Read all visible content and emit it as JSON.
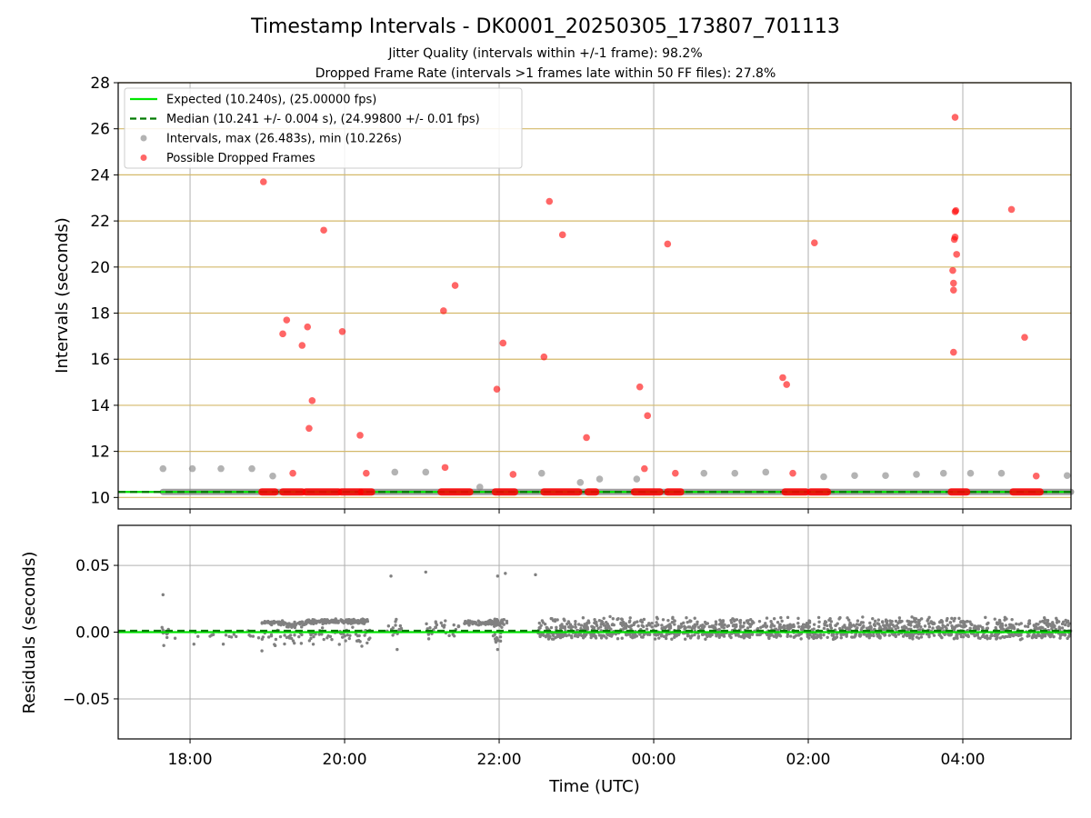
{
  "figure": {
    "title": "Timestamp Intervals - DK0001_20250305_173807_701113",
    "subtitle_1": "Jitter Quality (intervals within +/-1 frame): 98.2%",
    "subtitle_2": "Dropped Frame Rate (intervals >1 frames late within 50 FF files): 27.8%"
  },
  "colors": {
    "expected": "#00e600",
    "median": "#007a00",
    "intervals": "#808080",
    "dropped": "#ff0000",
    "grid_top_h": "#d4b96a",
    "grid": "#b0b0b0"
  },
  "chart_data": [
    {
      "type": "scatter",
      "title": "",
      "xlabel": "",
      "ylabel": "Intervals (seconds)",
      "x_unit": "hours since 2025-03-05 00:00 UTC",
      "xlim": [
        17.07,
        29.4
      ],
      "ylim": [
        9.5,
        28
      ],
      "x_ticks": [
        {
          "value": 18,
          "label": "18:00"
        },
        {
          "value": 20,
          "label": "20:00"
        },
        {
          "value": 22,
          "label": "22:00"
        },
        {
          "value": 24,
          "label": "00:00"
        },
        {
          "value": 26,
          "label": "02:00"
        },
        {
          "value": 28,
          "label": "04:00"
        }
      ],
      "y_ticks": [
        10,
        12,
        14,
        16,
        18,
        20,
        22,
        24,
        26,
        28
      ],
      "grid": true,
      "legend_position": "top-left",
      "series": [
        {
          "name": "Expected (10.240s), (25.00000 fps)",
          "kind": "line",
          "value": 10.24
        },
        {
          "name": "Median (10.241 +/- 0.004 s), (24.99800 +/- 0.01 fps)",
          "kind": "dashed-line",
          "value": 10.241
        },
        {
          "name": "Intervals, max (26.483s), min (10.226s)",
          "kind": "points",
          "baseline_range": [
            17.65,
            29.4
          ],
          "baseline_value": 10.24,
          "points": [
            [
              17.65,
              11.25
            ],
            [
              18.03,
              11.25
            ],
            [
              18.4,
              11.25
            ],
            [
              18.8,
              11.25
            ],
            [
              19.07,
              10.93
            ],
            [
              20.65,
              11.1
            ],
            [
              21.05,
              11.1
            ],
            [
              21.75,
              10.45
            ],
            [
              22.55,
              11.05
            ],
            [
              23.05,
              10.65
            ],
            [
              23.3,
              10.8
            ],
            [
              23.78,
              10.8
            ],
            [
              24.65,
              11.05
            ],
            [
              25.05,
              11.05
            ],
            [
              25.45,
              11.1
            ],
            [
              26.2,
              10.9
            ],
            [
              26.6,
              10.95
            ],
            [
              27.0,
              10.95
            ],
            [
              27.4,
              11.0
            ],
            [
              27.75,
              11.05
            ],
            [
              28.1,
              11.05
            ],
            [
              28.5,
              11.05
            ],
            [
              29.35,
              10.95
            ]
          ]
        },
        {
          "name": "Possible Dropped Frames",
          "kind": "points",
          "clusters": [
            [
              18.93,
              19.1
            ],
            [
              19.2,
              19.45
            ],
            [
              19.5,
              19.92
            ],
            [
              19.96,
              20.2
            ],
            [
              20.22,
              20.35
            ],
            [
              21.25,
              21.62
            ],
            [
              21.95,
              22.2
            ],
            [
              22.58,
              23.03
            ],
            [
              23.15,
              23.25
            ],
            [
              23.75,
              24.08
            ],
            [
              24.18,
              24.35
            ],
            [
              25.7,
              25.97
            ],
            [
              26.03,
              26.25
            ],
            [
              27.85,
              28.05
            ],
            [
              28.65,
              29.0
            ]
          ],
          "points": [
            [
              18.95,
              23.7
            ],
            [
              19.2,
              17.1
            ],
            [
              19.25,
              17.7
            ],
            [
              19.33,
              11.05
            ],
            [
              19.45,
              16.6
            ],
            [
              19.52,
              17.4
            ],
            [
              19.54,
              13.0
            ],
            [
              19.58,
              14.2
            ],
            [
              19.73,
              21.6
            ],
            [
              19.97,
              17.2
            ],
            [
              20.2,
              12.7
            ],
            [
              20.28,
              11.05
            ],
            [
              21.28,
              18.1
            ],
            [
              21.3,
              11.3
            ],
            [
              21.43,
              19.2
            ],
            [
              21.97,
              14.7
            ],
            [
              22.05,
              16.7
            ],
            [
              22.18,
              11.0
            ],
            [
              22.58,
              16.1
            ],
            [
              22.65,
              22.85
            ],
            [
              22.82,
              21.4
            ],
            [
              23.13,
              12.6
            ],
            [
              23.82,
              14.8
            ],
            [
              23.88,
              11.25
            ],
            [
              23.92,
              13.55
            ],
            [
              24.18,
              21.0
            ],
            [
              24.28,
              11.05
            ],
            [
              25.67,
              15.2
            ],
            [
              25.72,
              14.9
            ],
            [
              25.8,
              11.05
            ],
            [
              26.08,
              21.05
            ],
            [
              27.87,
              19.85
            ],
            [
              27.88,
              19.3
            ],
            [
              27.88,
              19.0
            ],
            [
              27.88,
              16.3
            ],
            [
              27.89,
              21.2
            ],
            [
              27.9,
              21.3
            ],
            [
              27.9,
              22.4
            ],
            [
              27.91,
              22.45
            ],
            [
              27.92,
              20.55
            ],
            [
              27.9,
              26.5
            ],
            [
              28.63,
              22.5
            ],
            [
              28.8,
              16.95
            ],
            [
              28.95,
              10.93
            ]
          ]
        }
      ]
    },
    {
      "type": "scatter",
      "title": "",
      "xlabel": "Time (UTC)",
      "ylabel": "Residuals (seconds)",
      "xlim": [
        17.07,
        29.4
      ],
      "ylim": [
        -0.08,
        0.08
      ],
      "y_ticks": [
        {
          "value": 0.05,
          "label": "0.05"
        },
        {
          "value": 0.0,
          "label": "0.00"
        },
        {
          "value": -0.05,
          "label": "−0.05"
        }
      ],
      "grid": true,
      "series": [
        {
          "name": "Expected",
          "kind": "line",
          "value": 0.0
        },
        {
          "name": "Median",
          "kind": "dashed-line",
          "value": 0.001
        },
        {
          "name": "Residuals",
          "kind": "points",
          "segments": [
            {
              "from": 17.62,
              "to": 17.72,
              "center": 0.0,
              "spread": 0.006,
              "count": 12
            },
            {
              "from": 17.8,
              "to": 19.0,
              "center": -0.002,
              "spread": 0.006,
              "count": 20
            },
            {
              "from": 18.93,
              "to": 19.25,
              "center": 0.007,
              "spread": 0.002,
              "count": 40
            },
            {
              "from": 19.0,
              "to": 19.45,
              "center": -0.004,
              "spread": 0.008,
              "count": 25
            },
            {
              "from": 19.25,
              "to": 19.5,
              "center": 0.006,
              "spread": 0.003,
              "count": 35
            },
            {
              "from": 19.5,
              "to": 20.3,
              "center": 0.008,
              "spread": 0.002,
              "count": 160
            },
            {
              "from": 19.5,
              "to": 20.35,
              "center": -0.003,
              "spread": 0.008,
              "count": 50
            },
            {
              "from": 20.55,
              "to": 20.75,
              "center": 0.004,
              "spread": 0.008,
              "count": 15
            },
            {
              "from": 21.05,
              "to": 21.5,
              "center": 0.002,
              "spread": 0.008,
              "count": 30
            },
            {
              "from": 21.55,
              "to": 21.88,
              "center": 0.007,
              "spread": 0.002,
              "count": 50
            },
            {
              "from": 21.88,
              "to": 22.1,
              "center": 0.007,
              "spread": 0.004,
              "count": 40
            },
            {
              "from": 21.88,
              "to": 22.05,
              "center": -0.006,
              "spread": 0.006,
              "count": 12
            },
            {
              "from": 22.5,
              "to": 29.4,
              "center": 0.004,
              "spread": 0.008,
              "count": 900
            },
            {
              "from": 22.5,
              "to": 29.4,
              "center": -0.002,
              "spread": 0.004,
              "count": 500
            }
          ],
          "points": [
            [
              17.65,
              0.028
            ],
            [
              20.6,
              0.042
            ],
            [
              21.05,
              0.045
            ],
            [
              21.98,
              0.042
            ],
            [
              22.08,
              0.044
            ],
            [
              22.47,
              0.043
            ],
            [
              17.66,
              -0.01
            ],
            [
              18.05,
              -0.009
            ],
            [
              18.43,
              -0.009
            ],
            [
              18.93,
              -0.014
            ],
            [
              20.68,
              -0.013
            ],
            [
              21.98,
              -0.013
            ]
          ]
        }
      ]
    }
  ],
  "legend": [
    {
      "label": "Expected (10.240s), (25.00000 fps)",
      "style": "line",
      "color": "#00e600"
    },
    {
      "label": "Median (10.241 +/- 0.004 s), (24.99800 +/- 0.01 fps)",
      "style": "dashed",
      "color": "#007a00"
    },
    {
      "label": "Intervals, max (26.483s), min (10.226s)",
      "style": "dot",
      "color": "#808080"
    },
    {
      "label": "Possible Dropped Frames",
      "style": "dot",
      "color": "#ff0000"
    }
  ]
}
